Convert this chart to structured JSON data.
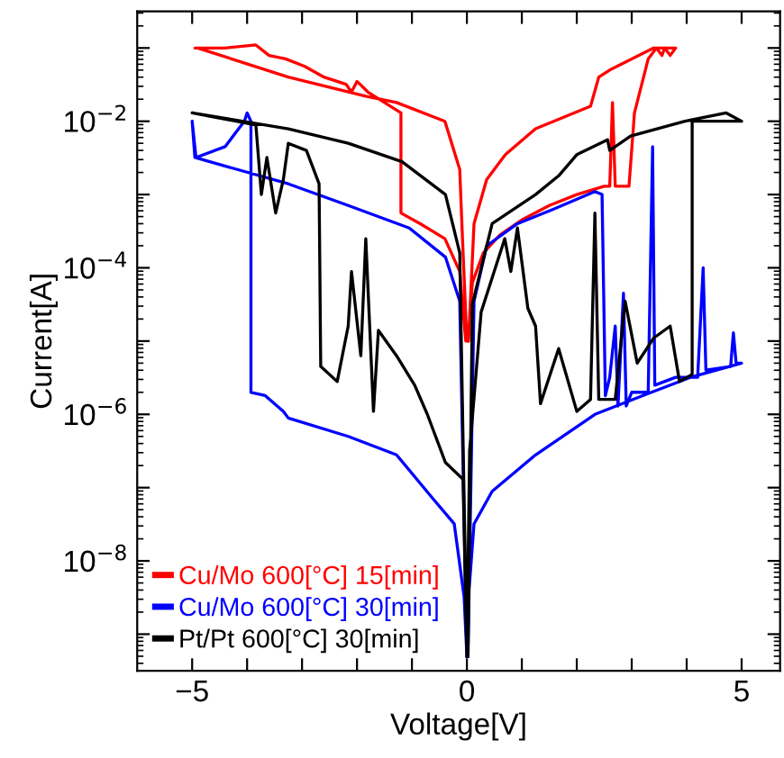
{
  "chart_data": {
    "type": "line",
    "xlabel": "Voltage[V]",
    "ylabel": "Current[A]",
    "log": "y",
    "xlim": [
      -6,
      5.7
    ],
    "ylim": [
      3.16e-10,
      0.316
    ],
    "xticks": [
      {
        "value": -5,
        "label": "−5"
      },
      {
        "value": -4,
        "label": null
      },
      {
        "value": -3,
        "label": null
      },
      {
        "value": -2,
        "label": null
      },
      {
        "value": -1,
        "label": null
      },
      {
        "value": 0,
        "label": "0"
      },
      {
        "value": 1,
        "label": null
      },
      {
        "value": 2,
        "label": null
      },
      {
        "value": 3,
        "label": null
      },
      {
        "value": 4,
        "label": null
      },
      {
        "value": 5,
        "label": "5"
      }
    ],
    "yticks": [
      {
        "value": 1e-09,
        "label": null
      },
      {
        "value": 1e-08,
        "label": "10$^{−8}$"
      },
      {
        "value": 1e-07,
        "label": null
      },
      {
        "value": 1e-06,
        "label": "10$^{−6}$"
      },
      {
        "value": 1e-05,
        "label": null
      },
      {
        "value": 0.0001,
        "label": "10$^{−4}$"
      },
      {
        "value": 0.001,
        "label": null
      },
      {
        "value": 0.01,
        "label": "10$^{−2}$"
      },
      {
        "value": 0.1,
        "label": null
      }
    ],
    "grid": false,
    "legend": "lower left",
    "marker": "none",
    "line_style": "solid",
    "series": [
      {
        "name": "Cu/Mo 600[°C] 15[min]",
        "color": "#ff0000",
        "x": [
          0.02,
          0.1,
          0.3,
          0.6,
          1.0,
          1.5,
          2.0,
          2.5,
          2.6,
          2.65,
          2.7,
          2.95,
          3.05,
          3.3,
          3.45,
          3.55,
          3.6,
          3.7,
          3.8,
          3.4,
          2.6,
          2.4,
          2.25,
          1.25,
          0.7,
          0.36,
          0.13,
          0.03,
          -0.02,
          -0.13,
          -0.4,
          -0.85,
          -1.2,
          -1.2,
          -1.8,
          -2.0,
          -2.1,
          -2.2,
          -2.6,
          -2.95,
          -3.3,
          -3.6,
          -3.84,
          -4.4,
          -4.95,
          -4.9,
          -3.25,
          -1.84,
          -1.28,
          -0.4,
          -0.13,
          -0.08,
          0
        ],
        "values": [
          1e-05,
          6.3e-05,
          0.00016,
          0.00028,
          0.00045,
          0.00071,
          0.001,
          0.0013,
          0.0013,
          0.018,
          0.0013,
          0.0013,
          0.013,
          0.071,
          0.1,
          0.079,
          0.1,
          0.079,
          0.1,
          0.1,
          0.05,
          0.04,
          0.016,
          0.0079,
          0.0035,
          0.0016,
          0.0004,
          1e-05,
          1e-05,
          8.9e-05,
          0.00025,
          0.0004,
          0.00056,
          0.013,
          0.025,
          0.035,
          0.025,
          0.032,
          0.04,
          0.056,
          0.071,
          0.079,
          0.11,
          0.1,
          0.1,
          0.1,
          0.04,
          0.022,
          0.018,
          0.01,
          0.0022,
          0.00025,
          1e-05
        ]
      },
      {
        "name": "Cu/Mo 600[°C] 30[min]",
        "color": "#0000ff",
        "x": [
          0.02,
          0.13,
          0.36,
          0.92,
          1.57,
          2.33,
          2.46,
          2.52,
          2.6,
          2.7,
          2.75,
          2.85,
          2.9,
          3.0,
          3.3,
          3.38,
          3.42,
          3.8,
          4.2,
          4.3,
          4.35,
          4.8,
          4.85,
          4.9,
          5.0,
          4.07,
          3.2,
          2.33,
          1.25,
          0.46,
          0.13,
          0.03,
          0,
          -0.05,
          -0.23,
          -0.62,
          -1.28,
          -2.16,
          -3.25,
          -3.34,
          -3.67,
          -3.93,
          -3.93,
          -4.0,
          -4.05,
          -4.2,
          -4.4,
          -4.93,
          -5.0,
          -4.95,
          -3.25,
          -2.16,
          -1.05,
          -0.39,
          -0.13,
          0
        ],
        "values": [
          5e-10,
          3.5e-05,
          0.0002,
          0.0004,
          0.00063,
          0.0011,
          0.001,
          1.8e-06,
          3.2e-06,
          1.6e-05,
          1.3e-06,
          4.5e-05,
          1.3e-06,
          2e-06,
          2e-06,
          0.0045,
          2.5e-06,
          3.2e-06,
          3.2e-06,
          0.0001,
          4e-06,
          4.5e-06,
          1.3e-05,
          5e-06,
          5e-06,
          3.2e-06,
          1.8e-06,
          1e-06,
          2.8e-07,
          8.9e-08,
          3.2e-08,
          3.2e-09,
          5e-10,
          3.2e-09,
          3.2e-08,
          7.1e-08,
          2.8e-07,
          5e-07,
          8.9e-07,
          1.1e-06,
          1.8e-06,
          2e-06,
          0.01,
          0.013,
          0.01,
          0.0071,
          0.0045,
          0.0032,
          0.01,
          0.0032,
          0.0014,
          0.00071,
          0.00035,
          0.00014,
          3.5e-05,
          5e-10
        ]
      },
      {
        "name": "Pt/Pt 600[°C] 30[min]",
        "color": "#000000",
        "x": [
          0.02,
          0.1,
          0.46,
          1.25,
          1.67,
          2.0,
          2.56,
          2.6,
          2.98,
          3.97,
          4.72,
          5.0,
          4.1,
          4.1,
          3.87,
          3.7,
          3.4,
          3.1,
          2.88,
          2.7,
          2.4,
          2.33,
          2.25,
          2.0,
          1.67,
          1.34,
          1.25,
          1.11,
          0.92,
          0.8,
          0.69,
          0.26,
          0.05,
          0,
          -0.07,
          -0.39,
          -0.72,
          -0.95,
          -1.28,
          -1.61,
          -1.7,
          -1.84,
          -1.93,
          -2.1,
          -2.16,
          -2.36,
          -2.66,
          -2.69,
          -2.92,
          -3.25,
          -3.34,
          -3.48,
          -3.64,
          -3.74,
          -3.84,
          -5.0,
          -3.25,
          -2.16,
          -1.18,
          -0.39,
          -0.13,
          0
        ],
        "values": [
          5e-10,
          3.2e-05,
          0.0004,
          0.001,
          0.0018,
          0.0035,
          0.0056,
          0.004,
          0.0063,
          0.01,
          0.013,
          0.01,
          0.01,
          3.5e-06,
          2.8e-06,
          1.6e-05,
          1.1e-05,
          5e-06,
          3.5e-05,
          1.6e-06,
          1.6e-06,
          0.00056,
          1.6e-06,
          1.1e-06,
          7.9e-06,
          1.4e-06,
          1.6e-05,
          2.8e-05,
          0.00035,
          8.9e-05,
          0.00025,
          2.5e-05,
          3.2e-07,
          5e-10,
          1.3e-07,
          2.2e-07,
          1e-06,
          2.5e-06,
          6.3e-06,
          1.4e-05,
          1.1e-06,
          0.00025,
          6.3e-06,
          8.9e-05,
          1.6e-05,
          2.8e-06,
          4.5e-06,
          0.0014,
          0.004,
          0.005,
          0.0016,
          0.00056,
          0.0032,
          0.001,
          0.0089,
          0.013,
          0.0079,
          0.005,
          0.0028,
          0.001,
          0.00016,
          5e-10
        ]
      }
    ]
  }
}
